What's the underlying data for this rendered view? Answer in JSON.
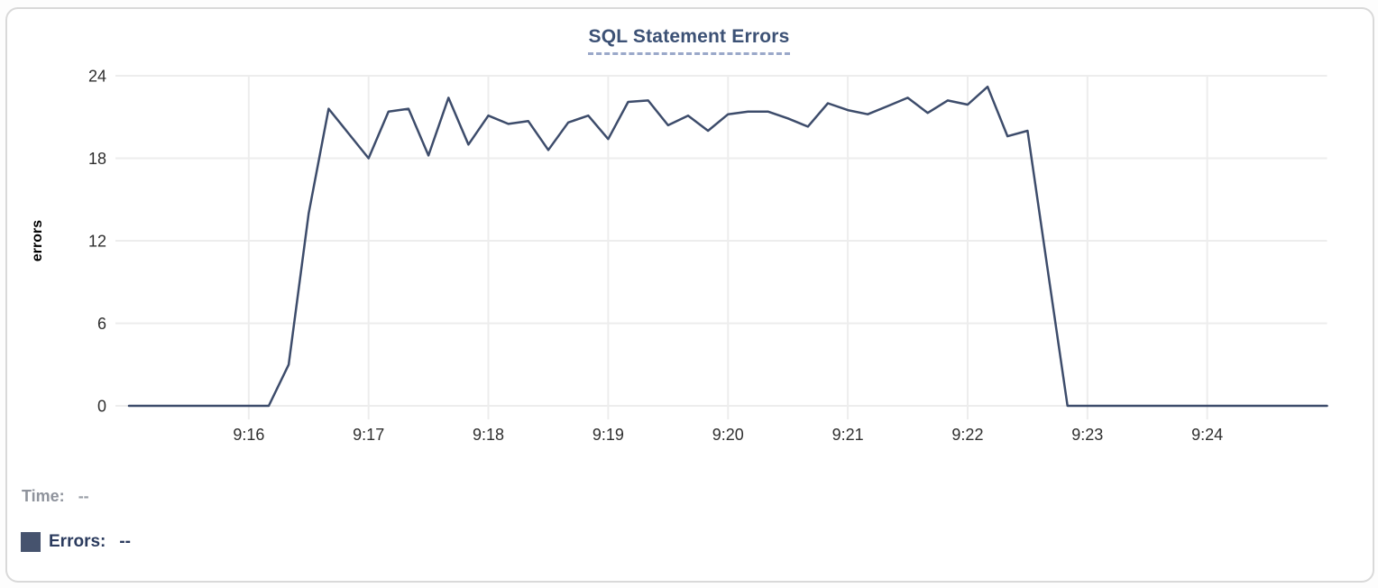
{
  "chart_data": {
    "type": "line",
    "title": "SQL Statement Errors",
    "xlabel": "",
    "ylabel": "errors",
    "y_ticks": [
      0,
      6,
      12,
      18,
      24
    ],
    "ylim": [
      0,
      24
    ],
    "x_tick_labels": [
      "9:16",
      "9:17",
      "9:18",
      "9:19",
      "9:20",
      "9:21",
      "9:22",
      "9:23",
      "9:24"
    ],
    "x_start_time": "9:15:00",
    "x_end_time": "9:25:00",
    "point_interval_seconds": 10,
    "grid": true,
    "legend_position": "bottom-left",
    "series": [
      {
        "name": "Errors",
        "color": "#3d4c6b",
        "values": [
          0,
          0,
          0,
          0,
          0,
          0,
          0,
          0,
          3,
          14,
          21.6,
          19.8,
          18,
          21.4,
          21.6,
          18.2,
          22.4,
          19,
          21.1,
          20.5,
          20.7,
          18.6,
          20.6,
          21.1,
          19.4,
          22.1,
          22.2,
          20.4,
          21.1,
          20,
          21.2,
          21.4,
          21.4,
          20.9,
          20.3,
          22,
          21.5,
          21.2,
          21.8,
          22.4,
          21.3,
          22.2,
          21.9,
          23.2,
          19.6,
          20,
          10,
          0,
          0,
          0,
          0,
          0,
          0,
          0,
          0,
          0,
          0,
          0,
          0,
          0,
          0
        ]
      }
    ]
  },
  "readout": {
    "time_label": "Time:",
    "time_value": "--",
    "errors_label": "Errors:",
    "errors_value": "--",
    "errors_swatch_color": "#46536e"
  },
  "colors": {
    "title": "#3c5175",
    "title_underline": "#9aa8c9",
    "gridline": "#ededed",
    "tick_text": "#2e2e2e",
    "axis_title": "#000000"
  }
}
